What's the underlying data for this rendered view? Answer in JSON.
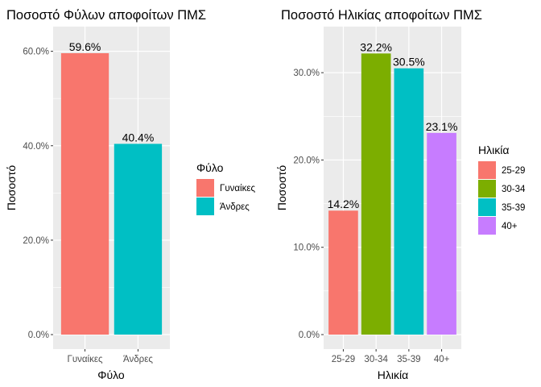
{
  "chart_data": [
    {
      "type": "bar",
      "title": "Ποσοστό Φύλων αποφοίτων ΠΜΣ",
      "xlabel": "Φύλο",
      "ylabel": "Ποσοστό",
      "categories": [
        "Γυναίκες",
        "Άνδρες"
      ],
      "values": [
        59.6,
        40.4
      ],
      "data_labels": [
        "59.6%",
        "40.4%"
      ],
      "colors": [
        "#F8766D",
        "#00BFC4"
      ],
      "ylim": [
        0,
        62.5
      ],
      "yticks": [
        0,
        20,
        40,
        60
      ],
      "ytick_labels": [
        "0.0%",
        "20.0%",
        "40.0%",
        "60.0%"
      ],
      "legend": {
        "title": "Φύλο",
        "position": "right",
        "entries": [
          "Γυναίκες",
          "Άνδρες"
        ]
      },
      "grid": true
    },
    {
      "type": "bar",
      "title": "Ποσοστό Ηλικίας αποφοίτων ΠΜΣ",
      "xlabel": "Ηλικία",
      "ylabel": "Ποσοστό",
      "categories": [
        "25-29",
        "30-34",
        "35-39",
        "40+"
      ],
      "values": [
        14.2,
        32.2,
        30.5,
        23.1
      ],
      "data_labels": [
        "14.2%",
        "32.2%",
        "30.5%",
        "23.1%"
      ],
      "colors": [
        "#F8766D",
        "#7CAE00",
        "#00BFC4",
        "#C77CFF"
      ],
      "ylim": [
        0,
        33.8
      ],
      "yticks": [
        0,
        10,
        20,
        30
      ],
      "ytick_labels": [
        "0.0%",
        "10.0%",
        "20.0%",
        "30.0%"
      ],
      "legend": {
        "title": "Ηλικία",
        "position": "right",
        "entries": [
          "25-29",
          "30-34",
          "35-39",
          "40+"
        ]
      },
      "grid": true
    }
  ]
}
